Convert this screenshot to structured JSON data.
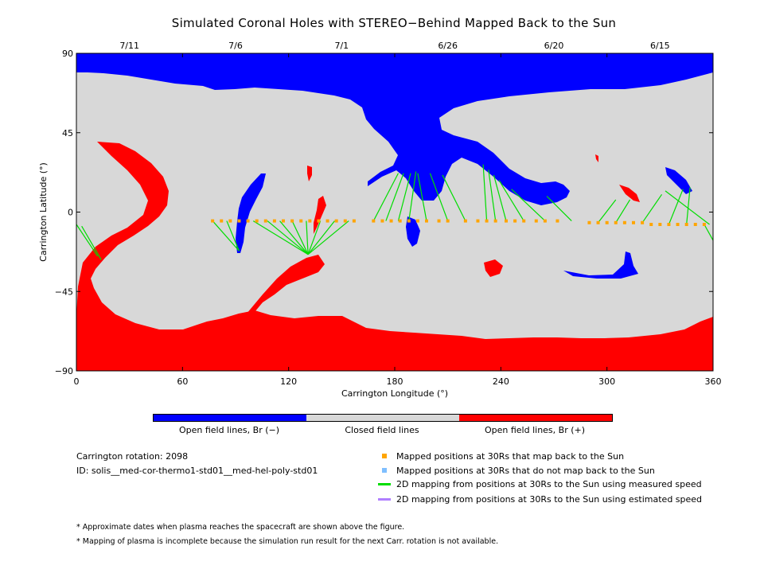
{
  "title": "Simulated Coronal Holes with STEREO−Behind Mapped Back to the Sun",
  "colors": {
    "open_negative": "#0000ff",
    "closed": "#d8d8d8",
    "open_positive": "#ff0000",
    "mapped_back": "#ffa500",
    "not_mapped_back": "#7fbfff",
    "measured_speed": "#00dd00",
    "estimated_speed": "#b07fff"
  },
  "chart_data": {
    "type": "map",
    "xlabel": "Carrington Longitude (°)",
    "ylabel": "Carrington Latitude (°)",
    "xlim": [
      0,
      360
    ],
    "ylim": [
      -90,
      90
    ],
    "xticks": [
      0,
      60,
      120,
      180,
      240,
      300,
      360
    ],
    "yticks": [
      -90,
      -45,
      0,
      45,
      90
    ],
    "date_ticks": [
      {
        "label": "7/11",
        "lon": 30
      },
      {
        "label": "7/6",
        "lon": 90
      },
      {
        "label": "7/1",
        "lon": 150
      },
      {
        "label": "6/26",
        "lon": 210
      },
      {
        "label": "6/20",
        "lon": 270
      },
      {
        "label": "6/15",
        "lon": 330
      }
    ],
    "regions": {
      "north_polar_negative_lat_min": 80,
      "south_polar_positive_lat_max": -55
    },
    "mapped_points": {
      "lon": [
        77,
        82,
        87,
        92,
        97,
        102,
        107,
        112,
        117,
        122,
        127,
        132,
        137,
        142,
        147,
        152,
        157,
        168,
        173,
        178,
        183,
        188,
        193,
        198,
        205,
        210,
        220,
        227,
        232,
        237,
        243,
        248,
        253,
        260,
        265,
        272,
        290,
        295,
        300,
        305,
        310,
        315,
        320,
        325,
        330,
        335,
        340,
        345,
        350,
        355
      ],
      "lat": [
        -5,
        -5,
        -5,
        -5,
        -5,
        -5,
        -5,
        -5,
        -5,
        -5,
        -5,
        -5,
        -5,
        -5,
        -5,
        -5,
        -5,
        -5,
        -5,
        -5,
        -5,
        -5,
        -5,
        -5,
        -5,
        -5,
        -5,
        -5,
        -5,
        -5,
        -5,
        -5,
        -5,
        -5,
        -5,
        -5,
        -6,
        -6,
        -6,
        -6,
        -6,
        -6,
        -6,
        -7,
        -7,
        -7,
        -7,
        -7,
        -7,
        -7
      ]
    },
    "mapping_lines": [
      {
        "from": [
          0,
          -7
        ],
        "to": [
          12,
          -25
        ]
      },
      {
        "from": [
          3,
          -8
        ],
        "to": [
          14,
          -27
        ]
      },
      {
        "from": [
          77,
          -5
        ],
        "to": [
          92,
          -22
        ]
      },
      {
        "from": [
          85,
          -5
        ],
        "to": [
          92,
          -22
        ]
      },
      {
        "from": [
          100,
          -5
        ],
        "to": [
          131,
          -24
        ]
      },
      {
        "from": [
          108,
          -5
        ],
        "to": [
          131,
          -24
        ]
      },
      {
        "from": [
          115,
          -5
        ],
        "to": [
          131,
          -24
        ]
      },
      {
        "from": [
          122,
          -5
        ],
        "to": [
          131,
          -24
        ]
      },
      {
        "from": [
          130,
          -5
        ],
        "to": [
          131,
          -24
        ]
      },
      {
        "from": [
          138,
          -5
        ],
        "to": [
          131,
          -24
        ]
      },
      {
        "from": [
          146,
          -5
        ],
        "to": [
          131,
          -24
        ]
      },
      {
        "from": [
          154,
          -5
        ],
        "to": [
          131,
          -24
        ]
      },
      {
        "from": [
          168,
          -5
        ],
        "to": [
          182,
          22
        ]
      },
      {
        "from": [
          175,
          -5
        ],
        "to": [
          185,
          22
        ]
      },
      {
        "from": [
          182,
          -5
        ],
        "to": [
          189,
          22
        ]
      },
      {
        "from": [
          188,
          -5
        ],
        "to": [
          192,
          23
        ]
      },
      {
        "from": [
          198,
          -5
        ],
        "to": [
          193,
          22
        ]
      },
      {
        "from": [
          210,
          -5
        ],
        "to": [
          200,
          22
        ]
      },
      {
        "from": [
          220,
          -5
        ],
        "to": [
          207,
          21
        ]
      },
      {
        "from": [
          232,
          -5
        ],
        "to": [
          230,
          27
        ]
      },
      {
        "from": [
          237,
          -5
        ],
        "to": [
          233,
          24
        ]
      },
      {
        "from": [
          243,
          -5
        ],
        "to": [
          236,
          21
        ]
      },
      {
        "from": [
          253,
          -5
        ],
        "to": [
          239,
          18
        ]
      },
      {
        "from": [
          265,
          -5
        ],
        "to": [
          246,
          13
        ]
      },
      {
        "from": [
          280,
          -5
        ],
        "to": [
          266,
          9
        ]
      },
      {
        "from": [
          295,
          -6
        ],
        "to": [
          305,
          7
        ]
      },
      {
        "from": [
          305,
          -6
        ],
        "to": [
          313,
          7
        ]
      },
      {
        "from": [
          320,
          -6
        ],
        "to": [
          331,
          10
        ]
      },
      {
        "from": [
          335,
          -7
        ],
        "to": [
          343,
          13
        ]
      },
      {
        "from": [
          345,
          -7
        ],
        "to": [
          347,
          14
        ]
      },
      {
        "from": [
          358,
          -7
        ],
        "to": [
          333,
          12
        ]
      },
      {
        "from": [
          355,
          -7
        ],
        "to": [
          360,
          -16
        ]
      }
    ]
  },
  "colorbar": {
    "labels": [
      "Open field lines, Br (−)",
      "Closed field lines",
      "Open field lines, Br (+)"
    ]
  },
  "info": {
    "rotation": "Carrington rotation: 2098",
    "id": "ID: solis__med-cor-thermo1-std01__med-hel-poly-std01"
  },
  "key": [
    "Mapped positions at 30Rs that map back to the Sun",
    "Mapped positions at 30Rs that do not map back to the Sun",
    "2D mapping from positions at 30Rs to the Sun using measured speed",
    "2D mapping from positions at 30Rs to the Sun using estimated speed"
  ],
  "notes": [
    "* Approximate dates when plasma reaches the spacecraft are shown above the figure.",
    "* Mapping of plasma is incomplete because the simulation run result for the next Carr. rotation is not available."
  ]
}
